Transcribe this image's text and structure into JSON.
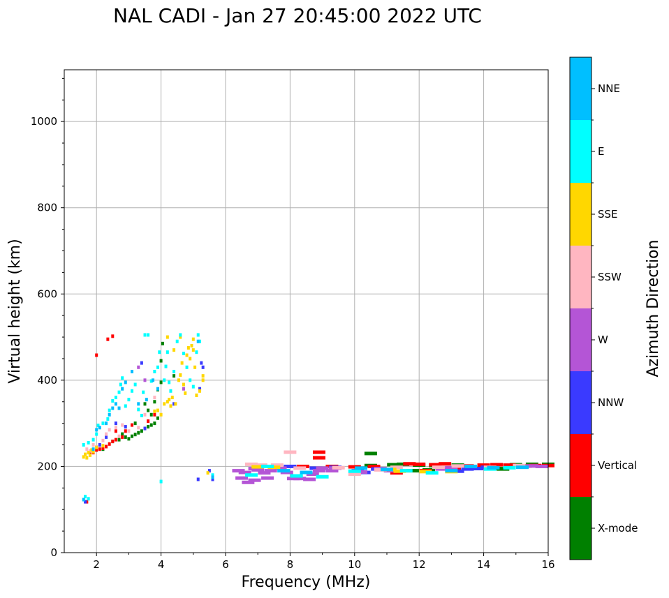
{
  "chart_data": {
    "type": "scatter",
    "title": "NAL CADI - Jan 27 20:45:00 2022 UTC",
    "xlabel": "Frequency (MHz)",
    "ylabel": "Virtual height (km)",
    "xlim": [
      1,
      16
    ],
    "ylim": [
      0,
      1120
    ],
    "xticks": [
      2,
      4,
      6,
      8,
      10,
      12,
      14,
      16
    ],
    "yticks": [
      0,
      200,
      400,
      600,
      800,
      1000
    ],
    "grid": true,
    "colorbar": {
      "label": "Azimuth Direction",
      "categories": [
        "X-mode",
        "Vertical",
        "NNW",
        "W",
        "SSW",
        "SSE",
        "E",
        "NNE"
      ],
      "colors": [
        "#008000",
        "#ff0000",
        "#3a3aff",
        "#b455d6",
        "#ffb6c1",
        "#ffd700",
        "#00ffff",
        "#00bfff"
      ]
    },
    "series": [
      {
        "name": "X-mode",
        "color": "#008000",
        "points": [
          [
            2.5,
            258
          ],
          [
            2.7,
            262
          ],
          [
            2.9,
            268
          ],
          [
            3.0,
            264
          ],
          [
            3.1,
            270
          ],
          [
            3.2,
            274
          ],
          [
            3.3,
            278
          ],
          [
            3.4,
            282
          ],
          [
            3.5,
            288
          ],
          [
            3.6,
            292
          ],
          [
            3.7,
            296
          ],
          [
            3.8,
            300
          ],
          [
            3.9,
            312
          ],
          [
            3.7,
            320
          ],
          [
            3.8,
            350
          ],
          [
            3.9,
            378
          ],
          [
            4.0,
            395
          ],
          [
            4.0,
            445
          ],
          [
            4.05,
            485
          ],
          [
            4.4,
            410
          ],
          [
            3.2,
            300
          ],
          [
            3.5,
            345
          ],
          [
            3.6,
            330
          ],
          [
            2.2,
            240
          ],
          [
            2.8,
            275
          ],
          [
            10.5,
            230
          ],
          [
            10.5,
            202
          ],
          [
            11.2,
            204
          ],
          [
            11.5,
            205
          ],
          [
            12.0,
            203
          ],
          [
            12.5,
            202
          ],
          [
            13.2,
            203
          ],
          [
            14.4,
            195
          ],
          [
            14.6,
            194
          ],
          [
            15.0,
            204
          ],
          [
            15.5,
            205
          ],
          [
            16.0,
            205
          ],
          [
            11.8,
            190
          ],
          [
            12.3,
            192
          ]
        ]
      },
      {
        "name": "Vertical",
        "color": "#ff0000",
        "points": [
          [
            1.7,
            118
          ],
          [
            1.8,
            230
          ],
          [
            1.9,
            232
          ],
          [
            2.0,
            238
          ],
          [
            2.1,
            240
          ],
          [
            2.2,
            242
          ],
          [
            2.3,
            246
          ],
          [
            2.4,
            252
          ],
          [
            2.5,
            258
          ],
          [
            2.6,
            262
          ],
          [
            2.8,
            268
          ],
          [
            2.9,
            282
          ],
          [
            2.0,
            458
          ],
          [
            2.35,
            495
          ],
          [
            2.5,
            502
          ],
          [
            2.6,
            282
          ],
          [
            3.1,
            296
          ],
          [
            3.6,
            305
          ],
          [
            3.8,
            320
          ],
          [
            8.9,
            233
          ],
          [
            8.9,
            220
          ],
          [
            8.4,
            200
          ],
          [
            9.3,
            200
          ],
          [
            10.0,
            199
          ],
          [
            11.3,
            185
          ],
          [
            11.7,
            206
          ],
          [
            12.0,
            205
          ],
          [
            12.5,
            204
          ],
          [
            12.8,
            206
          ],
          [
            13.5,
            201
          ],
          [
            14.0,
            203
          ],
          [
            14.4,
            204
          ],
          [
            14.8,
            203
          ],
          [
            15.3,
            201
          ],
          [
            15.6,
            202
          ],
          [
            16.0,
            202
          ],
          [
            12.2,
            190
          ],
          [
            13.1,
            193
          ],
          [
            10.6,
            200
          ]
        ]
      },
      {
        "name": "NNW",
        "color": "#3a3aff",
        "points": [
          [
            1.65,
            118
          ],
          [
            2.1,
            250
          ],
          [
            2.3,
            268
          ],
          [
            2.6,
            300
          ],
          [
            2.9,
            292
          ],
          [
            3.4,
            440
          ],
          [
            3.5,
            288
          ],
          [
            4.4,
            345
          ],
          [
            5.2,
            380
          ],
          [
            5.3,
            430
          ],
          [
            5.25,
            440
          ],
          [
            5.15,
            170
          ],
          [
            5.5,
            190
          ],
          [
            5.6,
            170
          ],
          [
            8.0,
            200
          ],
          [
            8.8,
            196
          ],
          [
            9.4,
            198
          ],
          [
            10.1,
            190
          ],
          [
            10.3,
            186
          ],
          [
            10.7,
            194
          ],
          [
            13.2,
            189
          ],
          [
            13.5,
            194
          ],
          [
            13.8,
            195
          ],
          [
            14.1,
            198
          ]
        ]
      },
      {
        "name": "W",
        "color": "#b455d6",
        "points": [
          [
            6.4,
            190
          ],
          [
            6.5,
            173
          ],
          [
            6.7,
            163
          ],
          [
            6.9,
            168
          ],
          [
            7.2,
            185
          ],
          [
            7.3,
            173
          ],
          [
            7.4,
            190
          ],
          [
            7.7,
            196
          ],
          [
            7.9,
            186
          ],
          [
            8.1,
            172
          ],
          [
            8.2,
            176
          ],
          [
            8.3,
            172
          ],
          [
            8.6,
            170
          ],
          [
            8.7,
            182
          ],
          [
            8.9,
            190
          ],
          [
            9.0,
            196
          ],
          [
            9.3,
            190
          ],
          [
            9.4,
            196
          ],
          [
            6.6,
            186
          ],
          [
            6.9,
            195
          ],
          [
            7.0,
            192
          ],
          [
            10.2,
            187
          ],
          [
            10.8,
            195
          ],
          [
            11.1,
            190
          ],
          [
            12.7,
            194
          ],
          [
            13.0,
            197
          ],
          [
            15.2,
            200
          ],
          [
            15.5,
            201
          ],
          [
            15.8,
            200
          ],
          [
            3.3,
            430
          ],
          [
            3.5,
            400
          ],
          [
            4.7,
            380
          ]
        ]
      },
      {
        "name": "SSW",
        "color": "#ffb6c1",
        "points": [
          [
            1.7,
            240
          ],
          [
            1.8,
            236
          ],
          [
            1.9,
            250
          ],
          [
            2.0,
            245
          ],
          [
            2.2,
            260
          ],
          [
            2.3,
            275
          ],
          [
            2.4,
            285
          ],
          [
            2.6,
            290
          ],
          [
            2.7,
            270
          ],
          [
            2.8,
            296
          ],
          [
            3.0,
            282
          ],
          [
            3.3,
            290
          ],
          [
            3.5,
            320
          ],
          [
            3.8,
            360
          ],
          [
            8.0,
            233
          ],
          [
            6.8,
            205
          ],
          [
            7.1,
            203
          ],
          [
            7.6,
            203
          ],
          [
            8.3,
            196
          ],
          [
            9.5,
            197
          ],
          [
            10.0,
            182
          ],
          [
            10.8,
            192
          ],
          [
            11.3,
            198
          ],
          [
            12.6,
            198
          ],
          [
            13.2,
            201
          ],
          [
            14.2,
            198
          ],
          [
            15.1,
            202
          ]
        ]
      },
      {
        "name": "SSE",
        "color": "#ffd700",
        "points": [
          [
            1.6,
            222
          ],
          [
            1.65,
            228
          ],
          [
            1.7,
            220
          ],
          [
            1.75,
            232
          ],
          [
            1.8,
            226
          ],
          [
            1.85,
            238
          ],
          [
            1.9,
            234
          ],
          [
            2.0,
            244
          ],
          [
            2.2,
            248
          ],
          [
            3.8,
            328
          ],
          [
            3.9,
            330
          ],
          [
            4.0,
            320
          ],
          [
            4.1,
            345
          ],
          [
            4.2,
            350
          ],
          [
            4.25,
            355
          ],
          [
            4.3,
            340
          ],
          [
            4.35,
            360
          ],
          [
            4.45,
            345
          ],
          [
            4.55,
            400
          ],
          [
            4.6,
            412
          ],
          [
            4.65,
            440
          ],
          [
            4.7,
            390
          ],
          [
            4.75,
            370
          ],
          [
            4.8,
            458
          ],
          [
            4.85,
            475
          ],
          [
            4.9,
            450
          ],
          [
            4.95,
            480
          ],
          [
            5.0,
            470
          ],
          [
            5.05,
            430
          ],
          [
            5.1,
            365
          ],
          [
            5.2,
            375
          ],
          [
            4.2,
            500
          ],
          [
            4.4,
            470
          ],
          [
            4.6,
            500
          ],
          [
            5.0,
            495
          ],
          [
            5.3,
            400
          ],
          [
            5.3,
            410
          ],
          [
            5.45,
            185
          ],
          [
            11.1,
            193
          ],
          [
            11.4,
            189
          ],
          [
            12.2,
            188
          ],
          [
            13.0,
            188
          ],
          [
            7.5,
            198
          ],
          [
            7.0,
            199
          ]
        ]
      },
      {
        "name": "E",
        "color": "#00ffff",
        "points": [
          [
            1.65,
            130
          ],
          [
            1.75,
            125
          ],
          [
            1.6,
            250
          ],
          [
            1.75,
            255
          ],
          [
            1.9,
            262
          ],
          [
            2.0,
            275
          ],
          [
            2.05,
            295
          ],
          [
            2.2,
            300
          ],
          [
            2.35,
            310
          ],
          [
            2.4,
            330
          ],
          [
            2.5,
            352
          ],
          [
            2.6,
            360
          ],
          [
            2.7,
            372
          ],
          [
            2.75,
            390
          ],
          [
            2.8,
            405
          ],
          [
            2.9,
            340
          ],
          [
            3.0,
            355
          ],
          [
            3.1,
            375
          ],
          [
            3.2,
            390
          ],
          [
            3.3,
            332
          ],
          [
            3.4,
            318
          ],
          [
            3.45,
            372
          ],
          [
            3.5,
            505
          ],
          [
            3.6,
            505
          ],
          [
            3.7,
            398
          ],
          [
            3.8,
            420
          ],
          [
            3.9,
            430
          ],
          [
            3.95,
            465
          ],
          [
            4.1,
            400
          ],
          [
            4.15,
            432
          ],
          [
            4.2,
            465
          ],
          [
            4.25,
            395
          ],
          [
            4.3,
            375
          ],
          [
            4.4,
            420
          ],
          [
            4.5,
            490
          ],
          [
            4.6,
            505
          ],
          [
            4.7,
            462
          ],
          [
            4.8,
            430
          ],
          [
            4.9,
            400
          ],
          [
            5.0,
            385
          ],
          [
            5.1,
            465
          ],
          [
            5.15,
            505
          ],
          [
            5.2,
            490
          ],
          [
            4.0,
            165
          ],
          [
            5.6,
            180
          ],
          [
            8.2,
            178
          ],
          [
            9.0,
            176
          ],
          [
            10.0,
            189
          ],
          [
            11.6,
            190
          ],
          [
            12.4,
            185
          ],
          [
            14.2,
            194
          ],
          [
            14.8,
            197
          ],
          [
            6.8,
            180
          ],
          [
            7.3,
            200
          ]
        ]
      },
      {
        "name": "NNE",
        "color": "#00bfff",
        "points": [
          [
            1.6,
            123
          ],
          [
            1.9,
            240
          ],
          [
            2.0,
            285
          ],
          [
            2.1,
            290
          ],
          [
            2.3,
            300
          ],
          [
            2.4,
            320
          ],
          [
            2.5,
            335
          ],
          [
            2.6,
            345
          ],
          [
            2.7,
            335
          ],
          [
            2.8,
            380
          ],
          [
            2.9,
            395
          ],
          [
            3.1,
            420
          ],
          [
            3.3,
            345
          ],
          [
            3.55,
            355
          ],
          [
            3.75,
            400
          ],
          [
            3.9,
            380
          ],
          [
            5.15,
            490
          ],
          [
            5.6,
            175
          ],
          [
            7.8,
            190
          ],
          [
            8.5,
            186
          ],
          [
            10.2,
            196
          ],
          [
            11.0,
            193
          ],
          [
            13.0,
            190
          ],
          [
            13.6,
            200
          ],
          [
            14.3,
            197
          ],
          [
            15.2,
            198
          ]
        ]
      }
    ]
  }
}
